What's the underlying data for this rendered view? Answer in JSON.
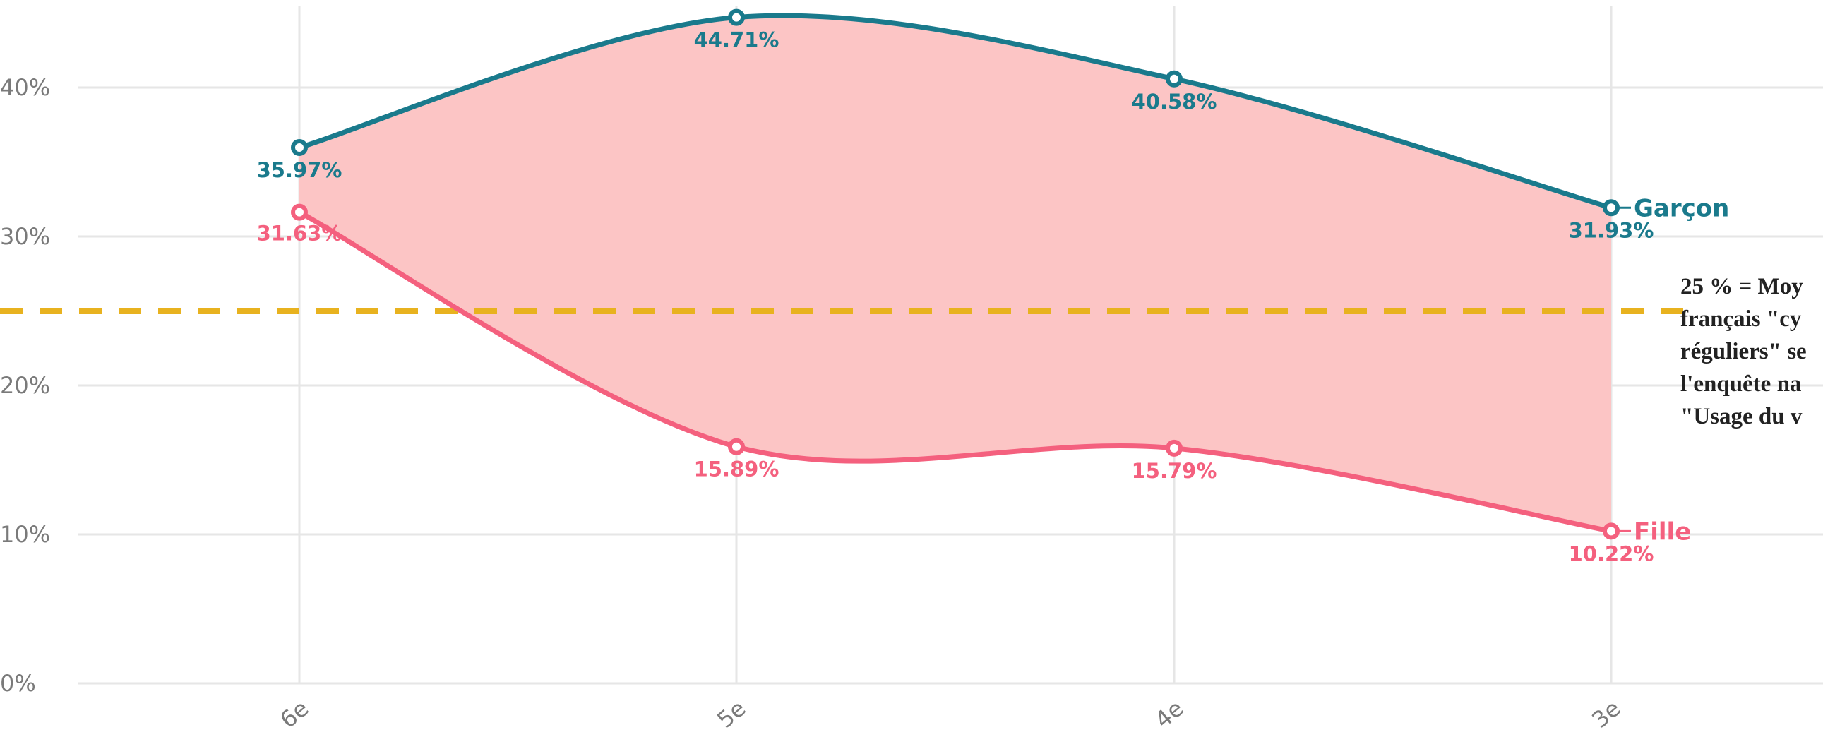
{
  "chart_data": {
    "type": "line",
    "categories": [
      "6e",
      "5e",
      "4e",
      "3e"
    ],
    "series": [
      {
        "name": "Garçon",
        "values": [
          35.97,
          44.71,
          40.58,
          31.93
        ],
        "labels": [
          "35.97%",
          "44.71%",
          "40.58%",
          "31.93%"
        ],
        "color": "#1a7a8c"
      },
      {
        "name": "Fille",
        "values": [
          31.63,
          15.89,
          15.79,
          10.22
        ],
        "labels": [
          "31.63%",
          "15.89%",
          "15.79%",
          "10.22%"
        ],
        "color": "#f4607e"
      }
    ],
    "area_between_series_color": "#fcc5c5",
    "ylim": [
      0,
      45
    ],
    "yticks": [
      0,
      10,
      20,
      30,
      40
    ],
    "ytick_labels": [
      "0%",
      "10%",
      "20%",
      "30%",
      "40%"
    ],
    "grid": true,
    "reference_line": {
      "value": 25,
      "color": "#e8b21f",
      "style": "dashed",
      "text_lines": [
        "25 % = Moy",
        "français \"cy",
        "réguliers\" se",
        "l'enquête na",
        "\"Usage du v"
      ]
    }
  }
}
